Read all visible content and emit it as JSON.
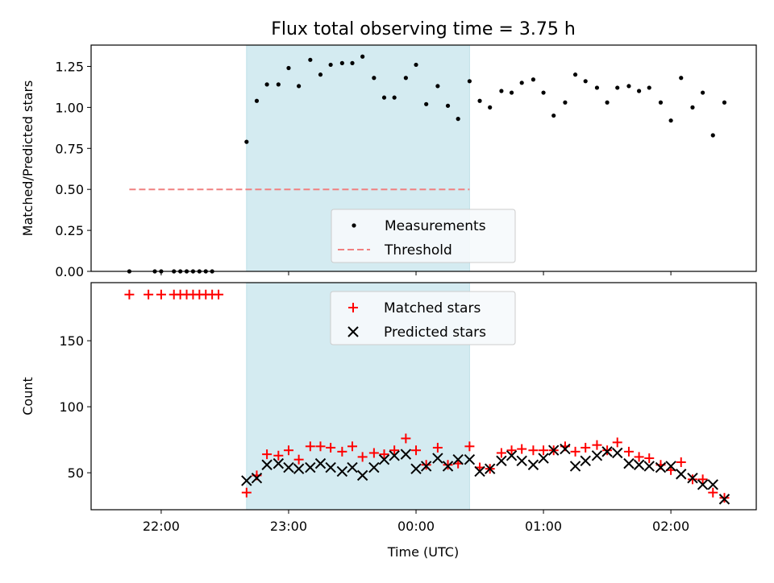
{
  "title": "Flux total observing time = 3.75 h",
  "chart_data": [
    {
      "type": "scatter",
      "panel": "top",
      "ylabel": "Matched/Predicted stars",
      "ylim": [
        0,
        1.38
      ],
      "yticks": [
        0,
        0.25,
        0.5,
        0.75,
        1.0,
        1.25
      ],
      "ytick_labels": [
        "0.00",
        "0.25",
        "0.50",
        "0.75",
        "1.00",
        "1.25"
      ],
      "shaded_interval_x": [
        22.67,
        24.42
      ],
      "threshold": {
        "value": 0.5,
        "x_range": [
          21.75,
          24.42
        ],
        "color": "#f08080"
      },
      "legend": {
        "placement": "lower-center",
        "entries": [
          {
            "label": "Measurements"
          },
          {
            "label": "Threshold"
          }
        ]
      },
      "series": [
        {
          "name": "Measurements",
          "color": "#000000",
          "x": [
            21.75,
            21.95,
            22.0,
            22.1,
            22.15,
            22.2,
            22.25,
            22.3,
            22.35,
            22.4,
            22.67,
            22.75,
            22.83,
            22.92,
            23.0,
            23.08,
            23.17,
            23.25,
            23.33,
            23.42,
            23.5,
            23.58,
            23.67,
            23.75,
            23.83,
            23.92,
            24.0,
            24.08,
            24.17,
            24.25,
            24.33,
            24.42,
            24.5,
            24.58,
            24.67,
            24.75,
            24.83,
            24.92,
            25.0,
            25.08,
            25.17,
            25.25,
            25.33,
            25.42,
            25.5,
            25.58,
            25.67,
            25.75,
            25.83,
            25.92,
            26.0,
            26.08,
            26.17,
            26.25,
            26.33,
            26.42
          ],
          "y": [
            0,
            0,
            0,
            0,
            0,
            0,
            0,
            0,
            0,
            0,
            0.79,
            1.04,
            1.14,
            1.14,
            1.24,
            1.13,
            1.29,
            1.2,
            1.26,
            1.27,
            1.27,
            1.31,
            1.18,
            1.06,
            1.06,
            1.18,
            1.26,
            1.02,
            1.13,
            1.01,
            0.93,
            1.16,
            1.04,
            1.0,
            1.1,
            1.09,
            1.15,
            1.17,
            1.09,
            0.95,
            1.03,
            1.2,
            1.16,
            1.12,
            1.03,
            1.12,
            1.13,
            1.1,
            1.12,
            1.03,
            0.92,
            1.18,
            1.0,
            1.09,
            0.83,
            1.03
          ]
        }
      ]
    },
    {
      "type": "scatter",
      "panel": "bottom",
      "xlabel": "Time (UTC)",
      "ylabel": "Count",
      "xlim": [
        21.45,
        26.67
      ],
      "xticks": [
        22,
        23,
        24,
        25,
        26
      ],
      "xtick_labels": [
        "22:00",
        "23:00",
        "00:00",
        "01:00",
        "02:00"
      ],
      "ylim": [
        22,
        194
      ],
      "yticks": [
        50,
        100,
        150
      ],
      "ytick_labels": [
        "50",
        "100",
        "150"
      ],
      "shaded_interval_x": [
        22.67,
        24.42
      ],
      "legend": {
        "placement": "upper-center",
        "entries": [
          {
            "label": "Matched stars"
          },
          {
            "label": "Predicted stars"
          }
        ]
      },
      "series": [
        {
          "name": "Matched stars",
          "marker": "plus",
          "color": "#ff0000",
          "x": [
            21.75,
            21.9,
            22.0,
            22.1,
            22.15,
            22.2,
            22.25,
            22.3,
            22.35,
            22.4,
            22.45,
            22.67,
            22.75,
            22.83,
            22.92,
            23.0,
            23.08,
            23.17,
            23.25,
            23.33,
            23.42,
            23.5,
            23.58,
            23.67,
            23.75,
            23.83,
            23.92,
            24.0,
            24.08,
            24.17,
            24.25,
            24.33,
            24.42,
            24.5,
            24.58,
            24.67,
            24.75,
            24.83,
            24.92,
            25.0,
            25.08,
            25.17,
            25.25,
            25.33,
            25.42,
            25.5,
            25.58,
            25.67,
            25.75,
            25.83,
            25.92,
            26.0,
            26.08,
            26.17,
            26.25,
            26.33,
            26.42
          ],
          "y": [
            185,
            185,
            185,
            185,
            185,
            185,
            185,
            185,
            185,
            185,
            185,
            35,
            48,
            64,
            63,
            67,
            60,
            70,
            70,
            69,
            66,
            70,
            62,
            65,
            64,
            67,
            76,
            67,
            56,
            69,
            56,
            57,
            70,
            54,
            53,
            65,
            67,
            68,
            67,
            67,
            67,
            70,
            66,
            69,
            71,
            67,
            73,
            66,
            62,
            61,
            56,
            52,
            58,
            45,
            45,
            35,
            31
          ]
        },
        {
          "name": "Predicted stars",
          "marker": "x",
          "color": "#000000",
          "x": [
            22.67,
            22.75,
            22.83,
            22.92,
            23.0,
            23.08,
            23.17,
            23.25,
            23.33,
            23.42,
            23.5,
            23.58,
            23.67,
            23.75,
            23.83,
            23.92,
            24.0,
            24.08,
            24.17,
            24.25,
            24.33,
            24.42,
            24.5,
            24.58,
            24.67,
            24.75,
            24.83,
            24.92,
            25.0,
            25.08,
            25.17,
            25.25,
            25.33,
            25.42,
            25.5,
            25.58,
            25.67,
            25.75,
            25.83,
            25.92,
            26.0,
            26.08,
            26.17,
            26.25,
            26.33,
            26.42
          ],
          "y": [
            44,
            46,
            56,
            57,
            54,
            53,
            54,
            57,
            54,
            51,
            54,
            48,
            54,
            60,
            63,
            64,
            53,
            55,
            61,
            55,
            60,
            60,
            51,
            53,
            59,
            63,
            59,
            56,
            61,
            67,
            68,
            55,
            59,
            63,
            66,
            65,
            57,
            56,
            55,
            54,
            55,
            49,
            46,
            41,
            41,
            30
          ]
        }
      ]
    }
  ]
}
